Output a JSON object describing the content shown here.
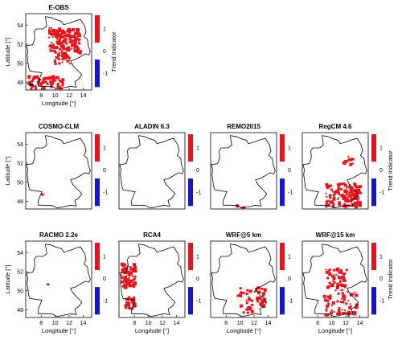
{
  "figure": {
    "panels": [
      {
        "title": "E-OBS",
        "x_label": "Longitude [°]",
        "y_label": "Latitude [°]",
        "colorbar_title": "Trend Indicator"
      },
      {
        "title": "COSMO-CLM",
        "x_label": "",
        "y_label": "Latitude [°]",
        "colorbar_title": ""
      },
      {
        "title": "ALADIN 6.3",
        "x_label": "",
        "y_label": "",
        "colorbar_title": ""
      },
      {
        "title": "REMO2015",
        "x_label": "",
        "y_label": "",
        "colorbar_title": ""
      },
      {
        "title": "RegCM 4.6",
        "x_label": "",
        "y_label": "",
        "colorbar_title": "Trend Indicator"
      },
      {
        "title": "RACMO 2.2e",
        "x_label": "Longitude [°]",
        "y_label": "Latitude [°]",
        "colorbar_title": ""
      },
      {
        "title": "RCA4",
        "x_label": "Longitude [°]",
        "y_label": "",
        "colorbar_title": ""
      },
      {
        "title": "WRF@5 km",
        "x_label": "Longitude [°]",
        "y_label": "",
        "colorbar_title": ""
      },
      {
        "title": "WRF@15 km",
        "x_label": "Longitude [°]",
        "y_label": "",
        "colorbar_title": "Trend Indicator"
      }
    ]
  },
  "chart_data": [
    {
      "type": "heatmap",
      "title": "E-OBS",
      "xlabel": "Longitude [°]",
      "ylabel": "Latitude [°]",
      "x_ticks": [
        "8",
        "10",
        "12",
        "14"
      ],
      "y_ticks": [
        "48",
        "50",
        "52",
        "54"
      ],
      "xlim": [
        5.8,
        15.2
      ],
      "ylim": [
        47.2,
        55.2
      ],
      "colorbar": {
        "title": "Trend Indicator",
        "ticks": [
          "1",
          "0",
          "-1"
        ],
        "colors": {
          "positive": "#e8141b",
          "neutral": "#ffffff",
          "negative": "#1414cc"
        }
      },
      "regions": [
        {
          "value": 1,
          "lon": [
            9.0,
            13.5
          ],
          "lat": [
            51.2,
            53.8
          ]
        },
        {
          "value": 1,
          "lon": [
            9.5,
            12.0
          ],
          "lat": [
            50.0,
            51.2
          ]
        },
        {
          "value": 1,
          "lon": [
            6.0,
            11.0
          ],
          "lat": [
            47.4,
            48.8
          ]
        }
      ]
    },
    {
      "type": "heatmap",
      "title": "COSMO-CLM",
      "ylabel": "Latitude [°]",
      "x_ticks": [],
      "y_ticks": [
        "48",
        "50",
        "52",
        "54"
      ],
      "colorbar_ticks": [
        "1",
        "0",
        "-1"
      ],
      "regions": [
        {
          "value": 1,
          "lon": [
            8.0,
            8.4
          ],
          "lat": [
            48.8,
            49.0
          ]
        }
      ]
    },
    {
      "type": "heatmap",
      "title": "ALADIN 6.3",
      "x_ticks": [],
      "y_ticks": [],
      "colorbar_ticks": [
        "1",
        "0",
        "-1"
      ],
      "regions": []
    },
    {
      "type": "heatmap",
      "title": "REMO2015",
      "x_ticks": [],
      "y_ticks": [],
      "colorbar_ticks": [
        "1",
        "0",
        "-1"
      ],
      "regions": [
        {
          "value": 1,
          "lon": [
            9.0,
            11.0
          ],
          "lat": [
            47.4,
            47.7
          ]
        }
      ]
    },
    {
      "type": "heatmap",
      "title": "RegCM 4.6",
      "x_ticks": [],
      "y_ticks": [],
      "colorbar_title": "Trend Indicator",
      "colorbar_ticks": [
        "1",
        "0",
        "-1"
      ],
      "regions": [
        {
          "value": 1,
          "lon": [
            11.5,
            13.0
          ],
          "lat": [
            52.0,
            52.8
          ]
        },
        {
          "value": 1,
          "lon": [
            9.0,
            14.0
          ],
          "lat": [
            47.5,
            50.0
          ]
        }
      ]
    },
    {
      "type": "heatmap",
      "title": "RACMO 2.2e",
      "xlabel": "Longitude [°]",
      "ylabel": "Latitude [°]",
      "x_ticks": [
        "8",
        "10",
        "12",
        "14"
      ],
      "y_ticks": [
        "48",
        "50",
        "52",
        "54"
      ],
      "colorbar_ticks": [
        "1",
        "0",
        "-1"
      ],
      "regions": []
    },
    {
      "type": "heatmap",
      "title": "RCA4",
      "xlabel": "Longitude [°]",
      "x_ticks": [
        "8",
        "10",
        "12",
        "14"
      ],
      "y_ticks": [],
      "colorbar_ticks": [
        "1",
        "0",
        "-1"
      ],
      "regions": [
        {
          "value": 1,
          "lon": [
            6.0,
            8.0
          ],
          "lat": [
            50.5,
            53.0
          ]
        },
        {
          "value": 1,
          "lon": [
            6.5,
            8.0
          ],
          "lat": [
            48.0,
            49.5
          ]
        }
      ]
    },
    {
      "type": "heatmap",
      "title": "WRF@5 km",
      "xlabel": "Longitude [°]",
      "x_ticks": [
        "8",
        "10",
        "12",
        "14"
      ],
      "y_ticks": [],
      "colorbar_ticks": [
        "1",
        "0",
        "-1"
      ],
      "regions": [
        {
          "value": 1,
          "lon": [
            9.5,
            13.5
          ],
          "lat": [
            48.5,
            50.5
          ]
        }
      ]
    },
    {
      "type": "heatmap",
      "title": "WRF@15 km",
      "xlabel": "Longitude [°]",
      "x_ticks": [
        "8",
        "10",
        "12",
        "14"
      ],
      "y_ticks": [],
      "colorbar_title": "Trend Indicator",
      "colorbar_ticks": [
        "1",
        "0",
        "-1"
      ],
      "regions": [
        {
          "value": 1,
          "lon": [
            9.0,
            12.0
          ],
          "lat": [
            50.0,
            52.5
          ]
        },
        {
          "value": 1,
          "lon": [
            8.5,
            13.5
          ],
          "lat": [
            47.5,
            50.0
          ]
        }
      ]
    }
  ]
}
